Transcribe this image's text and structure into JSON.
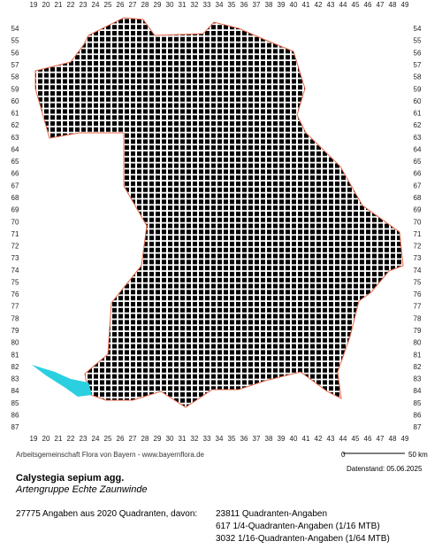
{
  "map": {
    "column_labels": [
      19,
      20,
      21,
      22,
      23,
      24,
      25,
      26,
      27,
      28,
      29,
      30,
      31,
      32,
      33,
      34,
      35,
      36,
      37,
      38,
      39,
      40,
      41,
      42,
      43,
      44,
      45,
      46,
      47,
      48,
      49
    ],
    "row_labels": [
      54,
      55,
      56,
      57,
      58,
      59,
      60,
      61,
      62,
      63,
      64,
      65,
      66,
      67,
      68,
      69,
      70,
      71,
      72,
      73,
      74,
      75,
      76,
      77,
      78,
      79,
      80,
      81,
      82,
      83,
      84,
      85,
      86,
      87
    ],
    "credit": "Arbeitsgemeinschaft Flora von Bayern - www.bayernflora.de",
    "scale_start": "0",
    "scale_end": "50 km",
    "date": "Datenstand: 05.06.2025"
  },
  "species": {
    "name": "Calystegia sepium agg.",
    "common_name": "Artengruppe Echte Zaunwinde"
  },
  "stats": {
    "summary": "27775 Angaben aus 2020 Quadranten, davon:",
    "lines": [
      "23811 Quadranten-Angaben",
      "617 1/4-Quadranten-Angaben (1/16 MTB)",
      "3032 1/16-Quadranten-Angaben (1/64 MTB)"
    ]
  }
}
